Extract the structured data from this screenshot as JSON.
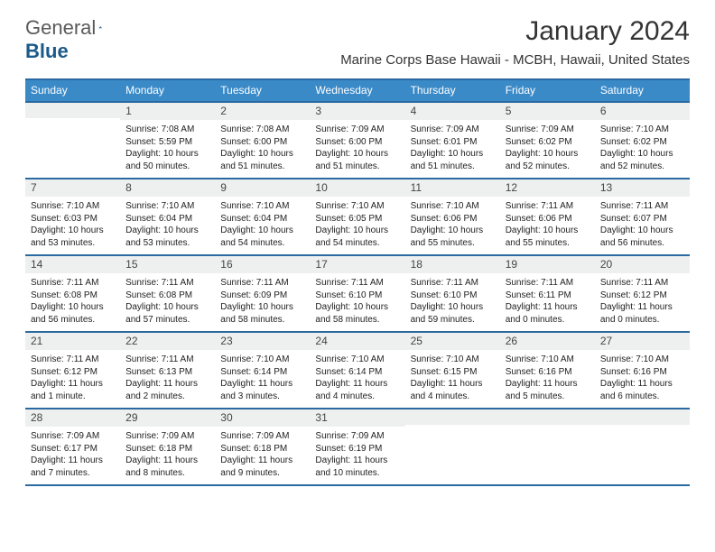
{
  "brand": {
    "part1": "General",
    "part2": "Blue"
  },
  "title": "January 2024",
  "location": "Marine Corps Base Hawaii - MCBH, Hawaii, United States",
  "colors": {
    "header_bg": "#3a8ac8",
    "border": "#2a6aa0",
    "daynum_bg": "#eef0f0",
    "text": "#222222",
    "logo_gray": "#5a5a5a",
    "logo_blue": "#1a5a8a"
  },
  "daynames": [
    "Sunday",
    "Monday",
    "Tuesday",
    "Wednesday",
    "Thursday",
    "Friday",
    "Saturday"
  ],
  "weeks": [
    [
      {
        "n": "",
        "sr": "",
        "ss": "",
        "dl": ""
      },
      {
        "n": "1",
        "sr": "Sunrise: 7:08 AM",
        "ss": "Sunset: 5:59 PM",
        "dl": "Daylight: 10 hours and 50 minutes."
      },
      {
        "n": "2",
        "sr": "Sunrise: 7:08 AM",
        "ss": "Sunset: 6:00 PM",
        "dl": "Daylight: 10 hours and 51 minutes."
      },
      {
        "n": "3",
        "sr": "Sunrise: 7:09 AM",
        "ss": "Sunset: 6:00 PM",
        "dl": "Daylight: 10 hours and 51 minutes."
      },
      {
        "n": "4",
        "sr": "Sunrise: 7:09 AM",
        "ss": "Sunset: 6:01 PM",
        "dl": "Daylight: 10 hours and 51 minutes."
      },
      {
        "n": "5",
        "sr": "Sunrise: 7:09 AM",
        "ss": "Sunset: 6:02 PM",
        "dl": "Daylight: 10 hours and 52 minutes."
      },
      {
        "n": "6",
        "sr": "Sunrise: 7:10 AM",
        "ss": "Sunset: 6:02 PM",
        "dl": "Daylight: 10 hours and 52 minutes."
      }
    ],
    [
      {
        "n": "7",
        "sr": "Sunrise: 7:10 AM",
        "ss": "Sunset: 6:03 PM",
        "dl": "Daylight: 10 hours and 53 minutes."
      },
      {
        "n": "8",
        "sr": "Sunrise: 7:10 AM",
        "ss": "Sunset: 6:04 PM",
        "dl": "Daylight: 10 hours and 53 minutes."
      },
      {
        "n": "9",
        "sr": "Sunrise: 7:10 AM",
        "ss": "Sunset: 6:04 PM",
        "dl": "Daylight: 10 hours and 54 minutes."
      },
      {
        "n": "10",
        "sr": "Sunrise: 7:10 AM",
        "ss": "Sunset: 6:05 PM",
        "dl": "Daylight: 10 hours and 54 minutes."
      },
      {
        "n": "11",
        "sr": "Sunrise: 7:10 AM",
        "ss": "Sunset: 6:06 PM",
        "dl": "Daylight: 10 hours and 55 minutes."
      },
      {
        "n": "12",
        "sr": "Sunrise: 7:11 AM",
        "ss": "Sunset: 6:06 PM",
        "dl": "Daylight: 10 hours and 55 minutes."
      },
      {
        "n": "13",
        "sr": "Sunrise: 7:11 AM",
        "ss": "Sunset: 6:07 PM",
        "dl": "Daylight: 10 hours and 56 minutes."
      }
    ],
    [
      {
        "n": "14",
        "sr": "Sunrise: 7:11 AM",
        "ss": "Sunset: 6:08 PM",
        "dl": "Daylight: 10 hours and 56 minutes."
      },
      {
        "n": "15",
        "sr": "Sunrise: 7:11 AM",
        "ss": "Sunset: 6:08 PM",
        "dl": "Daylight: 10 hours and 57 minutes."
      },
      {
        "n": "16",
        "sr": "Sunrise: 7:11 AM",
        "ss": "Sunset: 6:09 PM",
        "dl": "Daylight: 10 hours and 58 minutes."
      },
      {
        "n": "17",
        "sr": "Sunrise: 7:11 AM",
        "ss": "Sunset: 6:10 PM",
        "dl": "Daylight: 10 hours and 58 minutes."
      },
      {
        "n": "18",
        "sr": "Sunrise: 7:11 AM",
        "ss": "Sunset: 6:10 PM",
        "dl": "Daylight: 10 hours and 59 minutes."
      },
      {
        "n": "19",
        "sr": "Sunrise: 7:11 AM",
        "ss": "Sunset: 6:11 PM",
        "dl": "Daylight: 11 hours and 0 minutes."
      },
      {
        "n": "20",
        "sr": "Sunrise: 7:11 AM",
        "ss": "Sunset: 6:12 PM",
        "dl": "Daylight: 11 hours and 0 minutes."
      }
    ],
    [
      {
        "n": "21",
        "sr": "Sunrise: 7:11 AM",
        "ss": "Sunset: 6:12 PM",
        "dl": "Daylight: 11 hours and 1 minute."
      },
      {
        "n": "22",
        "sr": "Sunrise: 7:11 AM",
        "ss": "Sunset: 6:13 PM",
        "dl": "Daylight: 11 hours and 2 minutes."
      },
      {
        "n": "23",
        "sr": "Sunrise: 7:10 AM",
        "ss": "Sunset: 6:14 PM",
        "dl": "Daylight: 11 hours and 3 minutes."
      },
      {
        "n": "24",
        "sr": "Sunrise: 7:10 AM",
        "ss": "Sunset: 6:14 PM",
        "dl": "Daylight: 11 hours and 4 minutes."
      },
      {
        "n": "25",
        "sr": "Sunrise: 7:10 AM",
        "ss": "Sunset: 6:15 PM",
        "dl": "Daylight: 11 hours and 4 minutes."
      },
      {
        "n": "26",
        "sr": "Sunrise: 7:10 AM",
        "ss": "Sunset: 6:16 PM",
        "dl": "Daylight: 11 hours and 5 minutes."
      },
      {
        "n": "27",
        "sr": "Sunrise: 7:10 AM",
        "ss": "Sunset: 6:16 PM",
        "dl": "Daylight: 11 hours and 6 minutes."
      }
    ],
    [
      {
        "n": "28",
        "sr": "Sunrise: 7:09 AM",
        "ss": "Sunset: 6:17 PM",
        "dl": "Daylight: 11 hours and 7 minutes."
      },
      {
        "n": "29",
        "sr": "Sunrise: 7:09 AM",
        "ss": "Sunset: 6:18 PM",
        "dl": "Daylight: 11 hours and 8 minutes."
      },
      {
        "n": "30",
        "sr": "Sunrise: 7:09 AM",
        "ss": "Sunset: 6:18 PM",
        "dl": "Daylight: 11 hours and 9 minutes."
      },
      {
        "n": "31",
        "sr": "Sunrise: 7:09 AM",
        "ss": "Sunset: 6:19 PM",
        "dl": "Daylight: 11 hours and 10 minutes."
      },
      {
        "n": "",
        "sr": "",
        "ss": "",
        "dl": ""
      },
      {
        "n": "",
        "sr": "",
        "ss": "",
        "dl": ""
      },
      {
        "n": "",
        "sr": "",
        "ss": "",
        "dl": ""
      }
    ]
  ]
}
